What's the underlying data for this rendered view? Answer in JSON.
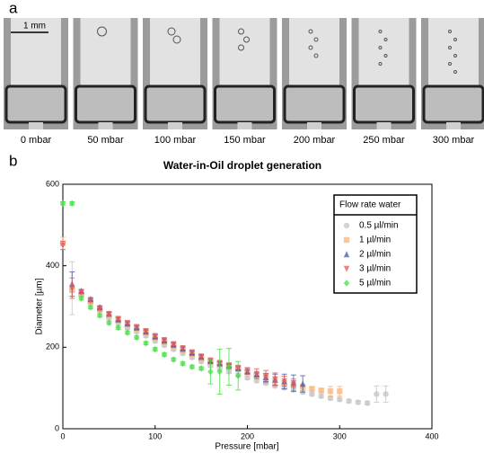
{
  "panel_a": {
    "label": "a",
    "scale_bar": "1 mm",
    "images": [
      "0 mbar",
      "50 mbar",
      "100 mbar",
      "150 mbar",
      "200 mbar",
      "250 mbar",
      "300 mbar"
    ]
  },
  "panel_b": {
    "label": "b"
  },
  "chart_data": {
    "type": "scatter",
    "title": "Water-in-Oil droplet generation",
    "x_label": "Pressure [mbar]",
    "y_label": "Diameter [µm]",
    "xlim": [
      0,
      400
    ],
    "xticks": [
      0,
      100,
      200,
      300,
      400
    ],
    "ylim": [
      0,
      600
    ],
    "yticks": [
      0,
      200,
      400,
      600
    ],
    "legend_title": "Flow rate water",
    "legend": "upper right",
    "error_bars": true,
    "series": [
      {
        "name": "0.5 µl/min",
        "color": "#c4c4c4",
        "marker": "circle",
        "x": [
          10,
          20,
          30,
          40,
          50,
          60,
          70,
          80,
          90,
          100,
          110,
          120,
          130,
          140,
          150,
          160,
          170,
          180,
          190,
          200,
          210,
          220,
          230,
          240,
          250,
          260,
          270,
          280,
          290,
          300,
          310,
          320,
          330,
          340,
          350
        ],
        "values": [
          345,
          330,
          310,
          290,
          272,
          260,
          248,
          238,
          228,
          215,
          205,
          195,
          185,
          175,
          165,
          155,
          148,
          140,
          132,
          125,
          118,
          112,
          105,
          100,
          95,
          90,
          85,
          80,
          75,
          72,
          68,
          65,
          63,
          85,
          85
        ],
        "errors": [
          65,
          4,
          4,
          4,
          4,
          4,
          4,
          4,
          4,
          4,
          4,
          4,
          4,
          4,
          4,
          4,
          4,
          4,
          4,
          4,
          4,
          4,
          4,
          4,
          4,
          4,
          4,
          4,
          4,
          4,
          4,
          4,
          4,
          20,
          20
        ]
      },
      {
        "name": "1 µl/min",
        "color": "#f8b47a",
        "marker": "square",
        "x": [
          0,
          10,
          20,
          30,
          40,
          50,
          60,
          70,
          80,
          90,
          100,
          110,
          120,
          130,
          140,
          150,
          160,
          170,
          180,
          190,
          200,
          210,
          220,
          230,
          240,
          250,
          260,
          270,
          280,
          290,
          300
        ],
        "values": [
          455,
          340,
          330,
          312,
          292,
          278,
          265,
          255,
          245,
          235,
          222,
          212,
          202,
          192,
          182,
          172,
          163,
          158,
          152,
          146,
          138,
          131,
          125,
          118,
          113,
          108,
          103,
          98,
          94,
          92,
          92
        ],
        "errors": [
          15,
          4,
          4,
          4,
          4,
          4,
          4,
          4,
          4,
          4,
          4,
          4,
          4,
          4,
          4,
          4,
          4,
          4,
          4,
          4,
          4,
          4,
          4,
          4,
          4,
          4,
          4,
          4,
          4,
          12,
          12
        ]
      },
      {
        "name": "2 µl/min",
        "color": "#4a5aa8",
        "marker": "triangle-up",
        "x": [
          10,
          20,
          30,
          40,
          50,
          60,
          70,
          80,
          90,
          100,
          110,
          120,
          130,
          140,
          150,
          160,
          170,
          180,
          190,
          200,
          210,
          220,
          230,
          240,
          250,
          260
        ],
        "values": [
          355,
          338,
          318,
          298,
          282,
          268,
          258,
          248,
          238,
          226,
          216,
          206,
          196,
          186,
          176,
          166,
          160,
          154,
          148,
          140,
          133,
          126,
          120,
          116,
          112,
          110
        ],
        "errors": [
          30,
          4,
          4,
          4,
          4,
          4,
          4,
          4,
          4,
          4,
          4,
          4,
          4,
          4,
          4,
          4,
          4,
          4,
          4,
          4,
          4,
          10,
          14,
          18,
          20,
          20
        ]
      },
      {
        "name": "3 µl/min",
        "color": "#e05a5a",
        "marker": "triangle-down",
        "x": [
          0,
          10,
          20,
          30,
          40,
          50,
          60,
          70,
          80,
          90,
          100,
          110,
          120,
          130,
          140,
          150,
          160,
          170,
          180,
          190,
          200,
          210,
          220,
          230,
          240,
          250
        ],
        "values": [
          450,
          345,
          335,
          315,
          295,
          282,
          270,
          260,
          250,
          240,
          228,
          218,
          208,
          198,
          188,
          178,
          168,
          162,
          156,
          150,
          142,
          135,
          128,
          122,
          117,
          112
        ],
        "errors": [
          10,
          25,
          4,
          4,
          4,
          4,
          4,
          4,
          4,
          4,
          4,
          4,
          4,
          4,
          4,
          4,
          4,
          4,
          4,
          4,
          8,
          12,
          15,
          15,
          12,
          10
        ]
      },
      {
        "name": "5 µl/min",
        "color": "#44dd44",
        "marker": "diamond",
        "x": [
          0,
          10,
          20,
          30,
          40,
          50,
          60,
          70,
          80,
          90,
          100,
          110,
          120,
          130,
          140,
          150,
          160,
          170,
          180,
          190
        ],
        "values": [
          553,
          553,
          320,
          298,
          278,
          260,
          248,
          236,
          224,
          210,
          195,
          182,
          170,
          160,
          152,
          148,
          140,
          140,
          152,
          130
        ],
        "errors": [
          4,
          4,
          4,
          4,
          4,
          4,
          4,
          4,
          4,
          4,
          4,
          4,
          4,
          4,
          4,
          4,
          30,
          55,
          45,
          35
        ]
      }
    ]
  }
}
